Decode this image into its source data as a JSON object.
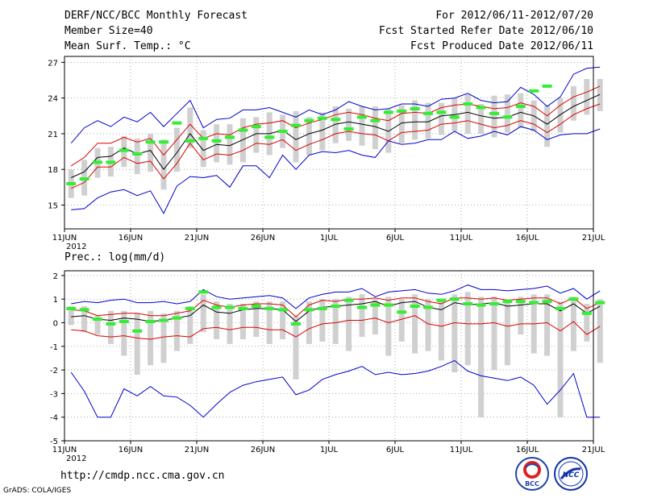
{
  "header": {
    "title": "DERF/NCC/BCC Monthly Forecast",
    "member_size": "Member Size=40",
    "variable_temp": "Mean Surf. Temp.: °C",
    "period": "For 2012/06/11-2012/07/20",
    "start_date": "Fcst Started Refer Date 2012/06/10",
    "produced_date": "Fcst Produced Date 2012/06/11"
  },
  "footer": {
    "url": "http://cmdp.ncc.cma.gov.cn",
    "grads": "GrADS: COLA/IGES",
    "logo_bcc_text": "BCC",
    "logo_ncc_text": "NCC"
  },
  "colors": {
    "ensemble_bar": "#d0d0d0",
    "ensemble_mean": "#000000",
    "spread": "#dd0000",
    "envelope": "#0000cc",
    "observed": "#33ee33"
  },
  "chart_data": [
    {
      "type": "line",
      "title": "Mean Surf. Temp.: °C",
      "x_tick_labels": [
        "11JUN",
        "16JUN",
        "21JUN",
        "26JUN",
        "1JUL",
        "6JUL",
        "11JUL",
        "16JUL",
        "21JUL"
      ],
      "x_year_label": "2012",
      "ylim": [
        13,
        27.5
      ],
      "y_ticks": [
        15,
        18,
        21,
        24,
        27
      ],
      "days": 40,
      "series": [
        {
          "name": "ensemble mean",
          "values": [
            17.3,
            17.8,
            19,
            19.1,
            19.8,
            19.3,
            19.6,
            18,
            19.4,
            21,
            19.6,
            20.1,
            20,
            20.5,
            21,
            21,
            21.3,
            20.5,
            21,
            21.3,
            21.8,
            22,
            21.8,
            21.6,
            21.2,
            21.9,
            22,
            22,
            22.5,
            22.6,
            22.8,
            22.5,
            22.3,
            22.4,
            22.8,
            22.5,
            21.8,
            22.6,
            23.3,
            23.8,
            24.3
          ]
        },
        {
          "name": "spread upper",
          "values": [
            18.3,
            19,
            20.2,
            20.2,
            20.7,
            20.3,
            20.6,
            19.2,
            20.5,
            21.8,
            20.6,
            21,
            20.9,
            21.5,
            21.8,
            21.9,
            22.1,
            21.5,
            21.9,
            22.2,
            22.6,
            22.8,
            22.6,
            22.3,
            22.1,
            22.7,
            22.8,
            22.7,
            23.2,
            23.4,
            23.5,
            23.3,
            23.1,
            23.2,
            23.6,
            23.3,
            22.5,
            23.4,
            24.1,
            24.5,
            25
          ]
        },
        {
          "name": "spread lower",
          "values": [
            16.4,
            16.9,
            18.2,
            18.2,
            19,
            18.5,
            18.7,
            17.2,
            18.5,
            20.2,
            18.8,
            19.3,
            19.2,
            19.6,
            20.2,
            20.1,
            20.5,
            19.6,
            20.1,
            20.5,
            21,
            21.2,
            21,
            20.9,
            20.4,
            21.1,
            21.2,
            21.3,
            21.8,
            21.9,
            22.1,
            21.8,
            21.5,
            21.7,
            22.1,
            21.8,
            21.1,
            21.8,
            22.6,
            23.1,
            23.5
          ]
        },
        {
          "name": "max envelope",
          "values": [
            20.2,
            21.5,
            22.1,
            21.6,
            22.4,
            22,
            22.8,
            21.6,
            22.7,
            23.8,
            21.5,
            22.2,
            22.3,
            23,
            23,
            23.2,
            22.8,
            22.4,
            23,
            22.6,
            23,
            23.7,
            23.3,
            23,
            23.1,
            23.5,
            23.5,
            23.3,
            23.9,
            24,
            24.4,
            23.8,
            23.6,
            23.7,
            24.9,
            24.3,
            23.3,
            24.1,
            26,
            26.5,
            26.6
          ]
        },
        {
          "name": "min envelope",
          "values": [
            14.6,
            14.7,
            15.6,
            16.1,
            16.3,
            15.8,
            16.2,
            14.3,
            16.6,
            17.4,
            17.3,
            17.5,
            16.5,
            18.3,
            18.3,
            17.3,
            19.2,
            18,
            19.2,
            19.5,
            19.4,
            19.6,
            19.2,
            19,
            20.4,
            20.1,
            20.2,
            20.5,
            20.5,
            21.2,
            20.6,
            20.8,
            21.2,
            20.9,
            21.6,
            21.3,
            20.5,
            20.9,
            21,
            21,
            21.4
          ]
        },
        {
          "name": "observed",
          "values": [
            16.8,
            17.2,
            18.6,
            18.6,
            19.6,
            19.3,
            20.3,
            20.3,
            21.9,
            20.4,
            20.6,
            20.4,
            20.7,
            21.3,
            21.6,
            20.7,
            21.2,
            21.7,
            22.1,
            22.3,
            22.2,
            21.4,
            22.4,
            22.1,
            22.8,
            22.9,
            23.1,
            22.7,
            22.8,
            22.4,
            23.5,
            23.2,
            22.7,
            22.4,
            23.3,
            24.6,
            25
          ]
        }
      ],
      "ensemble_bars": {
        "low": [
          15.6,
          15.8,
          17.3,
          17.4,
          18.2,
          17.6,
          17.8,
          16.3,
          17.8,
          19.8,
          18.2,
          18.6,
          18.4,
          18.6,
          19.4,
          19.2,
          19.8,
          18.6,
          19.2,
          19.6,
          20.2,
          20.4,
          20,
          19.7,
          19.4,
          20.2,
          20.5,
          20.6,
          20.9,
          21.2,
          21,
          21,
          20.7,
          21.1,
          21.5,
          21.2,
          19.9,
          21.1,
          22.1,
          22.6,
          22.9
        ],
        "high": [
          18,
          18.8,
          19.8,
          19.9,
          20.8,
          20.6,
          21,
          20.5,
          21.5,
          23.2,
          21.3,
          21.8,
          21.8,
          22.3,
          22.4,
          22.8,
          22.6,
          22.9,
          22.4,
          22.8,
          23.3,
          23.1,
          23.3,
          23.3,
          23.1,
          23.4,
          23.8,
          23.6,
          23.6,
          24,
          24.3,
          23.5,
          24.2,
          24.3,
          24.4,
          23.8,
          23.4,
          24,
          25,
          25.6,
          25.6
        ]
      }
    },
    {
      "type": "line",
      "title": "Prec.: log(mm/d)",
      "x_tick_labels": [
        "11JUN",
        "16JUN",
        "21JUN",
        "26JUN",
        "1JUL",
        "6JUL",
        "11JUL",
        "16JUL",
        "21JUL"
      ],
      "x_year_label": "2012",
      "ylim": [
        -5,
        2.2
      ],
      "y_ticks": [
        -5,
        -4,
        -3,
        -2,
        -1,
        0,
        1,
        2
      ],
      "days": 40,
      "series": [
        {
          "name": "ensemble mean",
          "values": [
            0.25,
            0.3,
            0.15,
            0.1,
            0.2,
            0.15,
            0.05,
            0.1,
            0.2,
            0.3,
            0.75,
            0.45,
            0.4,
            0.55,
            0.6,
            0.6,
            0.55,
            0.05,
            0.5,
            0.65,
            0.7,
            0.75,
            0.8,
            0.9,
            0.7,
            0.85,
            0.9,
            0.65,
            0.55,
            0.85,
            0.75,
            0.8,
            0.85,
            0.7,
            0.75,
            0.8,
            0.8,
            0.5,
            0.8,
            0.4,
            0.7
          ]
        },
        {
          "name": "spread upper",
          "values": [
            0.55,
            0.5,
            0.3,
            0.35,
            0.4,
            0.4,
            0.3,
            0.3,
            0.4,
            0.5,
            0.95,
            0.75,
            0.65,
            0.75,
            0.8,
            0.8,
            0.75,
            0.25,
            0.75,
            0.95,
            0.9,
            1,
            1,
            1.05,
            0.95,
            1.05,
            1.05,
            0.9,
            0.8,
            1.05,
            1.05,
            1,
            1.05,
            0.95,
            1,
            1.05,
            1.05,
            0.8,
            1.05,
            0.6,
            0.85
          ]
        },
        {
          "name": "spread lower",
          "values": [
            -0.3,
            -0.35,
            -0.55,
            -0.6,
            -0.55,
            -0.65,
            -0.7,
            -0.6,
            -0.55,
            -0.6,
            -0.25,
            -0.2,
            -0.3,
            -0.2,
            -0.2,
            -0.3,
            -0.3,
            -0.6,
            -0.25,
            -0.05,
            0,
            0.1,
            0.1,
            0.2,
            0,
            0.15,
            0.3,
            -0.05,
            -0.15,
            0,
            -0.05,
            -0.05,
            0,
            -0.15,
            -0.05,
            -0.05,
            0,
            -0.35,
            0.05,
            -0.5,
            -0.15
          ]
        },
        {
          "name": "max envelope",
          "values": [
            0.8,
            0.9,
            0.85,
            0.95,
            1,
            0.85,
            0.85,
            0.9,
            0.8,
            0.9,
            1.4,
            1.1,
            1,
            1.05,
            1.1,
            1.15,
            1.05,
            0.6,
            1.05,
            1.2,
            1.3,
            1.3,
            1.45,
            1.1,
            1.3,
            1.35,
            1.4,
            1.25,
            1.2,
            1.35,
            1.6,
            1.4,
            1.4,
            1.35,
            1.4,
            1.45,
            1.55,
            1.25,
            1.45,
            1,
            1.35
          ]
        },
        {
          "name": "min envelope",
          "values": [
            -2.1,
            -2.9,
            -4,
            -4,
            -2.8,
            -3.1,
            -2.7,
            -3.1,
            -3.15,
            -3.5,
            -4,
            -3.45,
            -2.95,
            -2.65,
            -2.5,
            -2.4,
            -2.3,
            -3.05,
            -2.85,
            -2.4,
            -2.2,
            -2.05,
            -1.85,
            -2.2,
            -2.1,
            -2.2,
            -2.15,
            -2.05,
            -1.85,
            -1.6,
            -2.05,
            -2.25,
            -2.35,
            -2.45,
            -2.3,
            -2.65,
            -3.45,
            -2.85,
            -2.15,
            -4,
            -4
          ]
        },
        {
          "name": "observed",
          "values": [
            0.6,
            0.55,
            0.15,
            -0.05,
            0.05,
            -0.35,
            0.05,
            0.1,
            0.2,
            0.6,
            1.3,
            0.65,
            0.65,
            0.6,
            0.7,
            0.6,
            0.55,
            -0.05,
            0.55,
            0.6,
            0.7,
            0.95,
            0.65,
            0.75,
            0.75,
            0.45,
            0.7,
            0.65,
            0.95,
            1,
            0.8,
            0.75,
            0.8,
            0.9,
            0.9,
            0.85,
            0.9,
            0.6,
            1,
            0.4,
            0.85
          ]
        }
      ],
      "ensemble_bars": {
        "low": [
          -0.1,
          -0.4,
          -0.5,
          -0.9,
          -1.4,
          -2.2,
          -1.8,
          -1.7,
          -1.2,
          -0.9,
          -0.4,
          -0.7,
          -0.9,
          -0.7,
          -0.6,
          -0.9,
          -0.7,
          -2.4,
          -0.9,
          -0.8,
          -0.9,
          -1.2,
          -0.6,
          -0.5,
          -1.4,
          -0.8,
          -1.3,
          -1.2,
          -1.6,
          -2.1,
          -1.8,
          -4,
          -2,
          -1.8,
          -0.5,
          -1.3,
          -1.4,
          -4,
          -1.2,
          -0.8,
          -1.7
        ],
        "high": [
          0.7,
          0.7,
          0.3,
          0.5,
          0.5,
          0.4,
          0.5,
          0.4,
          0.5,
          0.7,
          1.2,
          0.9,
          0.8,
          0.8,
          0.9,
          0.9,
          0.9,
          0.3,
          0.9,
          1,
          1,
          1.1,
          1.2,
          1,
          1.1,
          1,
          1.2,
          1,
          0.9,
          1.2,
          1.3,
          1.1,
          1.1,
          1,
          1.1,
          1.2,
          1.2,
          0.9,
          1.1,
          0.8,
          1
        ]
      }
    }
  ]
}
